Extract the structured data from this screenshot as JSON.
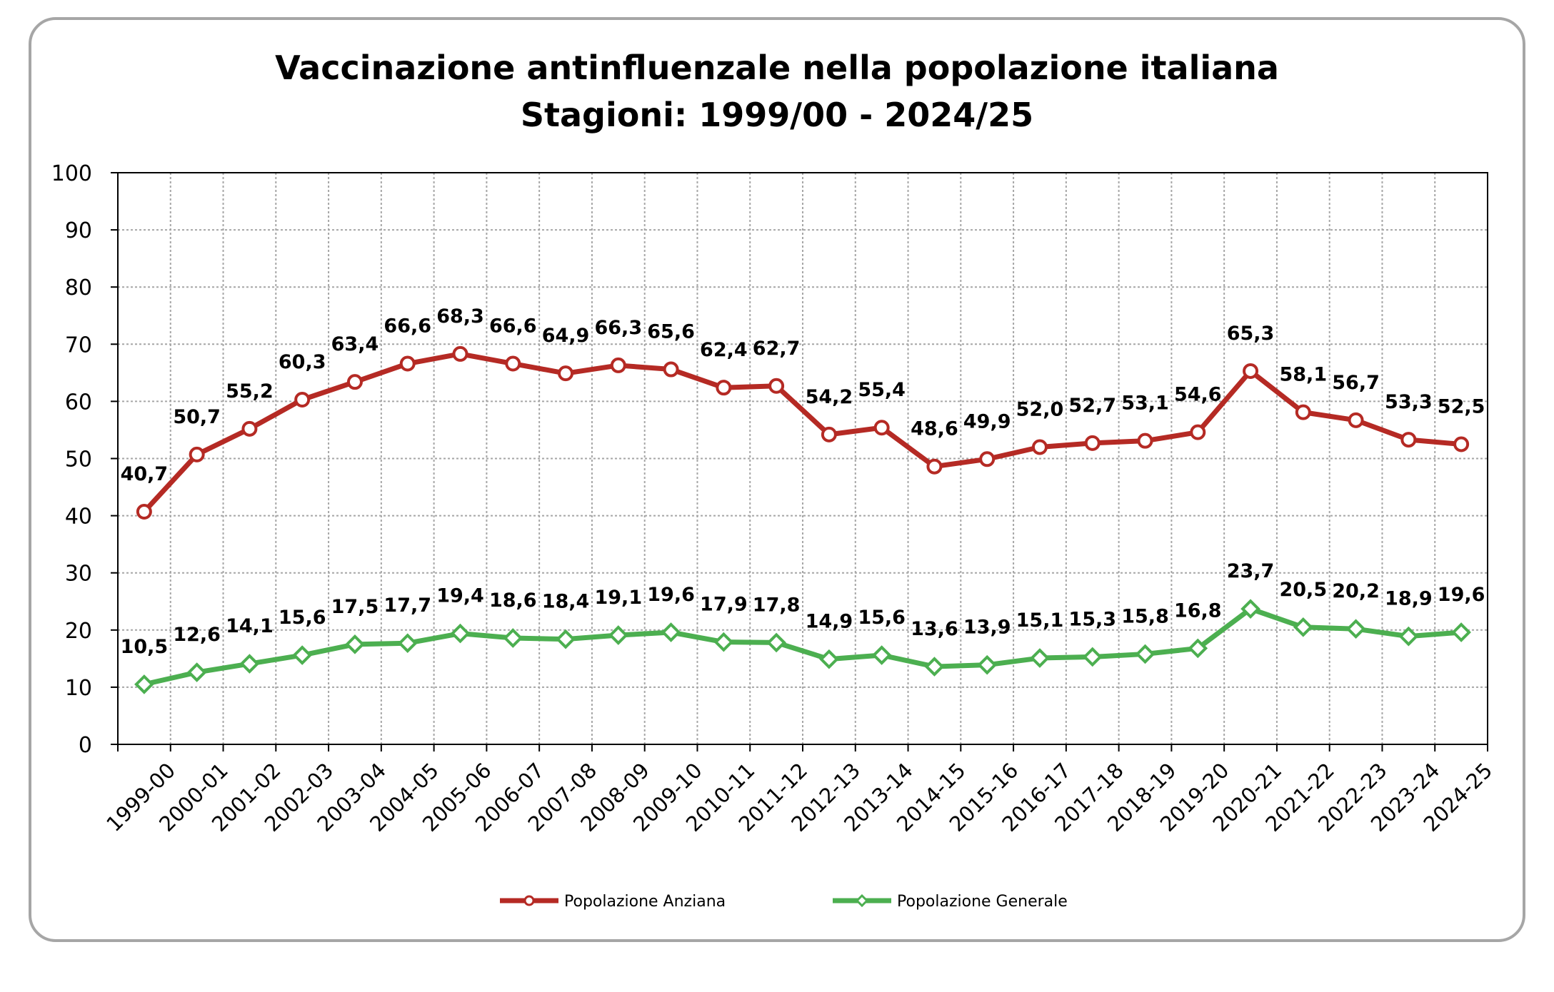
{
  "chart_data": {
    "type": "line",
    "title": "Vaccinazione antinfluenzale nella popolazione italiana",
    "subtitle": "Stagioni: 1999/00 - 2024/25",
    "xlabel": "",
    "ylabel": "",
    "ylim": [
      0,
      100
    ],
    "yticks": [
      "0",
      "10",
      "20",
      "30",
      "40",
      "50",
      "60",
      "70",
      "80",
      "90",
      "100"
    ],
    "grid": true,
    "legend_position": "bottom",
    "categories": [
      "1999-00",
      "2000-01",
      "2001-02",
      "2002-03",
      "2003-04",
      "2004-05",
      "2005-06",
      "2006-07",
      "2007-08",
      "2008-09",
      "2009-10",
      "2010-11",
      "2011-12",
      "2012-13",
      "2013-14",
      "2014-15",
      "2015-16",
      "2016-17",
      "2017-18",
      "2018-19",
      "2019-20",
      "2020-21",
      "2021-22",
      "2022-23",
      "2023-24",
      "2024-25"
    ],
    "series": [
      {
        "name": "Popolazione Anziana",
        "color": "#b52a24",
        "marker": "circle",
        "values": [
          40.7,
          50.7,
          55.2,
          60.3,
          63.4,
          66.6,
          68.3,
          66.6,
          64.9,
          66.3,
          65.6,
          62.4,
          62.7,
          54.2,
          55.4,
          48.6,
          49.9,
          52.0,
          52.7,
          53.1,
          54.6,
          65.3,
          58.1,
          56.7,
          53.3,
          52.5
        ],
        "labels": [
          "40,7",
          "50,7",
          "55,2",
          "60,3",
          "63,4",
          "66,6",
          "68,3",
          "66,6",
          "64,9",
          "66,3",
          "65,6",
          "62,4",
          "62,7",
          "54,2",
          "55,4",
          "48,6",
          "49,9",
          "52,0",
          "52,7",
          "53,1",
          "54,6",
          "65,3",
          "58,1",
          "56,7",
          "53,3",
          "52,5"
        ]
      },
      {
        "name": "Popolazione Generale",
        "color": "#4caf50",
        "marker": "diamond",
        "values": [
          10.5,
          12.6,
          14.1,
          15.6,
          17.5,
          17.7,
          19.4,
          18.6,
          18.4,
          19.1,
          19.6,
          17.9,
          17.8,
          14.9,
          15.6,
          13.6,
          13.9,
          15.1,
          15.3,
          15.8,
          16.8,
          23.7,
          20.5,
          20.2,
          18.9,
          19.6
        ],
        "labels": [
          "10,5",
          "12,6",
          "14,1",
          "15,6",
          "17,5",
          "17,7",
          "19,4",
          "18,6",
          "18,4",
          "19,1",
          "19,6",
          "17,9",
          "17,8",
          "14,9",
          "15,6",
          "13,6",
          "13,9",
          "15,1",
          "15,3",
          "15,8",
          "16,8",
          "23,7",
          "20,5",
          "20,2",
          "18,9",
          "19,6"
        ]
      }
    ]
  }
}
